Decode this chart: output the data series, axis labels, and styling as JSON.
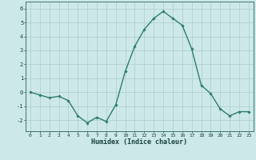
{
  "x": [
    0,
    1,
    2,
    3,
    4,
    5,
    6,
    7,
    8,
    9,
    10,
    11,
    12,
    13,
    14,
    15,
    16,
    17,
    18,
    19,
    20,
    21,
    22,
    23
  ],
  "y": [
    0.0,
    -0.2,
    -0.4,
    -0.3,
    -0.6,
    -1.7,
    -2.2,
    -1.8,
    -2.1,
    -0.9,
    1.5,
    3.3,
    4.5,
    5.3,
    5.8,
    5.3,
    4.8,
    3.1,
    0.5,
    -0.1,
    -1.2,
    -1.7,
    -1.4,
    -1.4
  ],
  "xlabel": "Humidex (Indice chaleur)",
  "ylim": [
    -2.8,
    6.5
  ],
  "yticks": [
    -2,
    -1,
    0,
    1,
    2,
    3,
    4,
    5,
    6
  ],
  "xticks": [
    0,
    1,
    2,
    3,
    4,
    5,
    6,
    7,
    8,
    9,
    10,
    11,
    12,
    13,
    14,
    15,
    16,
    17,
    18,
    19,
    20,
    21,
    22,
    23
  ],
  "line_color": "#2e7d6e",
  "marker": "D",
  "marker_size": 1.8,
  "bg_color": "#cce8e8",
  "grid_color": "#b0cccc",
  "axis_color": "#2e6060",
  "tick_label_color": "#1a4040",
  "xlabel_color": "#1a4040",
  "line_width": 1.0
}
